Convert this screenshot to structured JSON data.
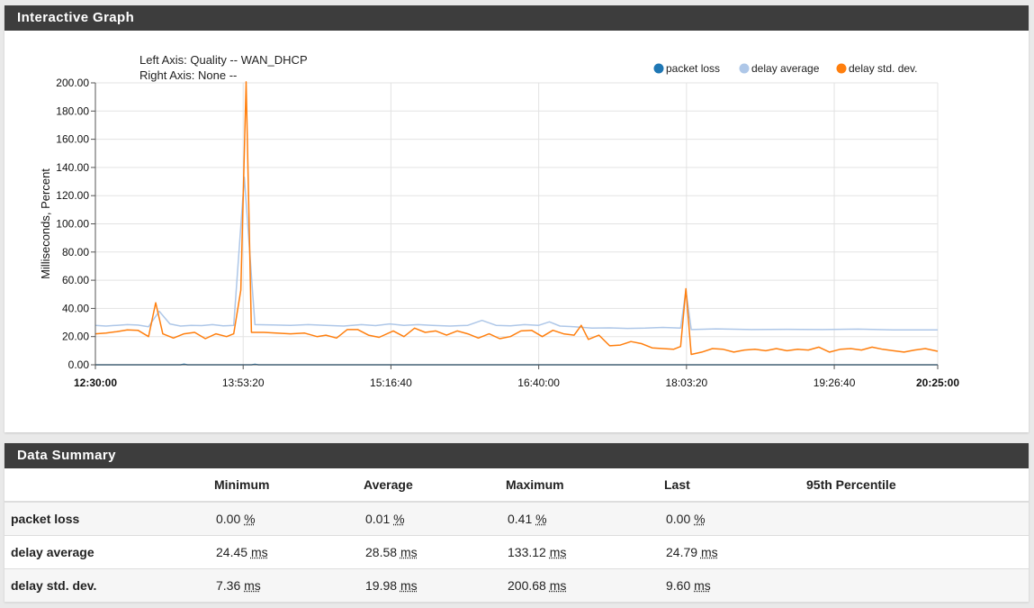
{
  "graph_panel": {
    "title": "Interactive Graph"
  },
  "summary_panel": {
    "title": "Data Summary"
  },
  "chart_data": {
    "type": "line",
    "axis_info": [
      "Left Axis: Quality -- WAN_DHCP",
      "Right Axis: None --"
    ],
    "ylabel": "Milliseconds, Percent",
    "ylim": [
      0,
      200
    ],
    "y_ticks": [
      "0.00",
      "20.00",
      "40.00",
      "60.00",
      "80.00",
      "100.00",
      "120.00",
      "140.00",
      "160.00",
      "180.00",
      "200.00"
    ],
    "x_ticks": [
      "12:30:00",
      "13:53:20",
      "15:16:40",
      "16:40:00",
      "18:03:20",
      "19:26:40",
      "20:25:00"
    ],
    "x_start": "12:30:00",
    "x_end": "20:25:00",
    "grid": true,
    "legend_position": "top-right",
    "series": [
      {
        "name": "packet loss",
        "color": "#1f77b4",
        "points": [
          [
            "12:30:00",
            0.0
          ],
          [
            "13:18:00",
            0.0
          ],
          [
            "13:20:00",
            0.41
          ],
          [
            "13:22:00",
            0.0
          ],
          [
            "13:50:00",
            0.0
          ],
          [
            "13:58:00",
            0.0
          ],
          [
            "14:00:00",
            0.3
          ],
          [
            "14:02:00",
            0.0
          ],
          [
            "20:25:00",
            0.0
          ]
        ]
      },
      {
        "name": "delay average",
        "color": "#aec7e8",
        "points": [
          [
            "12:30:00",
            28
          ],
          [
            "12:36:00",
            27.5
          ],
          [
            "12:42:00",
            28
          ],
          [
            "12:48:00",
            28.5
          ],
          [
            "12:54:00",
            28.2
          ],
          [
            "13:00:00",
            27
          ],
          [
            "13:06:00",
            38
          ],
          [
            "13:12:00",
            29
          ],
          [
            "13:18:00",
            27.5
          ],
          [
            "13:24:00",
            28
          ],
          [
            "13:30:00",
            27.8
          ],
          [
            "13:36:00",
            28.5
          ],
          [
            "13:42:00",
            27.6
          ],
          [
            "13:48:00",
            28
          ],
          [
            "13:54:00",
            133.12
          ],
          [
            "14:00:00",
            28.5
          ],
          [
            "14:10:00",
            28.3
          ],
          [
            "14:20:00",
            28
          ],
          [
            "14:30:00",
            28.5
          ],
          [
            "14:40:00",
            28
          ],
          [
            "14:50:00",
            27.5
          ],
          [
            "15:00:00",
            28.5
          ],
          [
            "15:08:00",
            27.8
          ],
          [
            "15:16:00",
            29
          ],
          [
            "15:24:00",
            28
          ],
          [
            "15:32:00",
            28.5
          ],
          [
            "15:40:00",
            28
          ],
          [
            "15:50:00",
            27.5
          ],
          [
            "16:00:00",
            28
          ],
          [
            "16:08:00",
            31.5
          ],
          [
            "16:16:00",
            28
          ],
          [
            "16:24:00",
            27.6
          ],
          [
            "16:32:00",
            28.5
          ],
          [
            "16:40:00",
            28
          ],
          [
            "16:46:00",
            30.5
          ],
          [
            "16:52:00",
            27.5
          ],
          [
            "17:00:00",
            27
          ],
          [
            "17:10:00",
            26
          ],
          [
            "17:20:00",
            26.2
          ],
          [
            "17:30:00",
            25.8
          ],
          [
            "17:40:00",
            26
          ],
          [
            "17:50:00",
            26.5
          ],
          [
            "18:00:00",
            26
          ],
          [
            "18:03:00",
            53
          ],
          [
            "18:06:00",
            25
          ],
          [
            "18:20:00",
            25.5
          ],
          [
            "18:40:00",
            25
          ],
          [
            "19:00:00",
            25.2
          ],
          [
            "19:20:00",
            25
          ],
          [
            "19:40:00",
            25.3
          ],
          [
            "20:00:00",
            24.8
          ],
          [
            "20:25:00",
            24.79
          ]
        ]
      },
      {
        "name": "delay std. dev.",
        "color": "#ff7f0e",
        "points": [
          [
            "12:30:00",
            22
          ],
          [
            "12:36:00",
            22.5
          ],
          [
            "12:42:00",
            23.5
          ],
          [
            "12:48:00",
            24.8
          ],
          [
            "12:54:00",
            24.5
          ],
          [
            "13:00:00",
            20
          ],
          [
            "13:04:00",
            44
          ],
          [
            "13:08:00",
            22
          ],
          [
            "13:14:00",
            19
          ],
          [
            "13:20:00",
            22
          ],
          [
            "13:26:00",
            23
          ],
          [
            "13:32:00",
            18.5
          ],
          [
            "13:38:00",
            22
          ],
          [
            "13:44:00",
            20
          ],
          [
            "13:48:00",
            22
          ],
          [
            "13:52:00",
            53
          ],
          [
            "13:55:00",
            200.68
          ],
          [
            "13:58:00",
            23
          ],
          [
            "14:05:00",
            23
          ],
          [
            "14:12:00",
            22.5
          ],
          [
            "14:20:00",
            22
          ],
          [
            "14:28:00",
            22.5
          ],
          [
            "14:35:00",
            20
          ],
          [
            "14:40:00",
            21
          ],
          [
            "14:46:00",
            19
          ],
          [
            "14:52:00",
            25
          ],
          [
            "14:58:00",
            25
          ],
          [
            "15:04:00",
            21
          ],
          [
            "15:10:00",
            19.5
          ],
          [
            "15:18:00",
            24
          ],
          [
            "15:24:00",
            20
          ],
          [
            "15:30:00",
            26
          ],
          [
            "15:36:00",
            23
          ],
          [
            "15:42:00",
            24
          ],
          [
            "15:48:00",
            21
          ],
          [
            "15:54:00",
            24
          ],
          [
            "16:00:00",
            22
          ],
          [
            "16:06:00",
            19
          ],
          [
            "16:12:00",
            22
          ],
          [
            "16:18:00",
            18.5
          ],
          [
            "16:24:00",
            20
          ],
          [
            "16:30:00",
            24
          ],
          [
            "16:36:00",
            24.5
          ],
          [
            "16:42:00",
            20
          ],
          [
            "16:48:00",
            24.5
          ],
          [
            "16:54:00",
            22
          ],
          [
            "17:00:00",
            21
          ],
          [
            "17:04:00",
            28
          ],
          [
            "17:08:00",
            18
          ],
          [
            "17:14:00",
            21
          ],
          [
            "17:20:00",
            13.5
          ],
          [
            "17:26:00",
            14
          ],
          [
            "17:32:00",
            16.5
          ],
          [
            "17:38:00",
            15
          ],
          [
            "17:44:00",
            12
          ],
          [
            "17:50:00",
            11.5
          ],
          [
            "17:56:00",
            11
          ],
          [
            "18:00:00",
            13
          ],
          [
            "18:03:00",
            54
          ],
          [
            "18:06:00",
            7.36
          ],
          [
            "18:12:00",
            9
          ],
          [
            "18:18:00",
            11.5
          ],
          [
            "18:24:00",
            11
          ],
          [
            "18:30:00",
            9
          ],
          [
            "18:36:00",
            10.5
          ],
          [
            "18:42:00",
            11
          ],
          [
            "18:48:00",
            10
          ],
          [
            "18:54:00",
            11.5
          ],
          [
            "19:00:00",
            10
          ],
          [
            "19:06:00",
            11
          ],
          [
            "19:12:00",
            10.5
          ],
          [
            "19:18:00",
            12.5
          ],
          [
            "19:24:00",
            9
          ],
          [
            "19:30:00",
            11
          ],
          [
            "19:36:00",
            11.5
          ],
          [
            "19:42:00",
            10.5
          ],
          [
            "19:48:00",
            12.5
          ],
          [
            "19:54:00",
            11
          ],
          [
            "20:00:00",
            10
          ],
          [
            "20:06:00",
            9
          ],
          [
            "20:12:00",
            10.5
          ],
          [
            "20:18:00",
            11.5
          ],
          [
            "20:25:00",
            9.6
          ]
        ]
      }
    ]
  },
  "summary": {
    "headers": [
      "",
      "Minimum",
      "Average",
      "Maximum",
      "Last",
      "95th Percentile"
    ],
    "rows": [
      {
        "label": "packet loss",
        "min": "0.00",
        "avg": "0.01",
        "max": "0.41",
        "last": "0.00",
        "unit": "%",
        "p95": ""
      },
      {
        "label": "delay average",
        "min": "24.45",
        "avg": "28.58",
        "max": "133.12",
        "last": "24.79",
        "unit": "ms",
        "p95": ""
      },
      {
        "label": "delay std. dev.",
        "min": "7.36",
        "avg": "19.98",
        "max": "200.68",
        "last": "9.60",
        "unit": "ms",
        "p95": ""
      }
    ]
  }
}
